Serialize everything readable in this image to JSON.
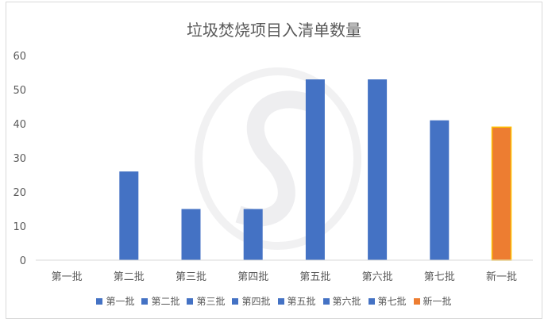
{
  "chart_data": {
    "type": "bar",
    "title": "垃圾焚烧项目入清单数量",
    "categories": [
      "第一批",
      "第二批",
      "第三批",
      "第四批",
      "第五批",
      "第六批",
      "第七批",
      "新一批"
    ],
    "values": [
      0,
      26,
      15,
      15,
      53,
      53,
      41,
      39
    ],
    "colors": [
      "#4472c4",
      "#4472c4",
      "#4472c4",
      "#4472c4",
      "#4472c4",
      "#4472c4",
      "#4472c4",
      "#ed7d31"
    ],
    "ylim": [
      0,
      60
    ],
    "yticks": [
      0,
      10,
      20,
      30,
      40,
      50,
      60
    ],
    "grid": false,
    "legend_position": "bottom",
    "xlabel": "",
    "ylabel": ""
  }
}
